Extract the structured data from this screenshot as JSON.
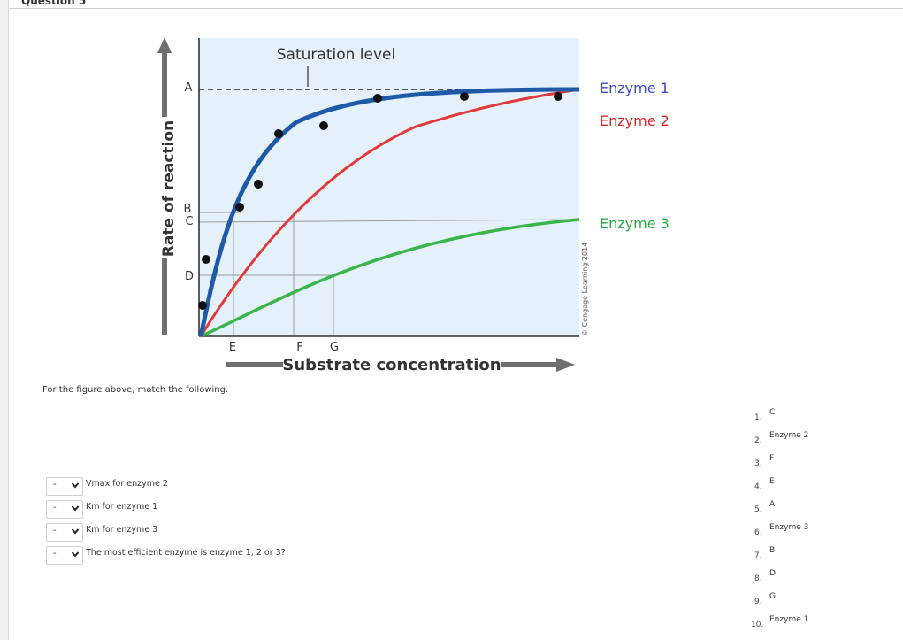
{
  "question": {
    "header": "Question 5"
  },
  "figure": {
    "curve_labels": [
      {
        "text": "Enzyme 1",
        "color": "#3d4fbf"
      },
      {
        "text": "Enzyme 2",
        "color": "#d42a2a"
      },
      {
        "text": "Enzyme 3",
        "color": "#2aa845"
      }
    ],
    "y_axis_label": "Rate of reaction",
    "x_axis_label": "Substrate concentration",
    "saturation_label": "Saturation level",
    "y_markers": [
      "A",
      "B",
      "C",
      "D"
    ],
    "x_markers": [
      "E",
      "F",
      "G"
    ],
    "credit": "© Cengage Learning 2014",
    "colors": {
      "enzyme1": "#1f5aa8",
      "enzyme2": "#e03a3a",
      "enzyme3": "#3ab54a",
      "plot_bg": "#e4f0fa"
    }
  },
  "instructions": "For the figure above, match the following.",
  "matching": {
    "items": [
      {
        "selected": "-",
        "label": "Vmax for enzyme 2"
      },
      {
        "selected": "-",
        "label": "Km for enzyme 1"
      },
      {
        "selected": "-",
        "label": "Km for enzyme 3"
      },
      {
        "selected": "-",
        "label": "The most efficient enzyme is enzyme 1, 2 or 3?"
      }
    ],
    "answers": [
      {
        "num": "1.",
        "text": "C"
      },
      {
        "num": "2.",
        "text": "Enzyme 2"
      },
      {
        "num": "3.",
        "text": "F"
      },
      {
        "num": "4.",
        "text": "E"
      },
      {
        "num": "5.",
        "text": "A"
      },
      {
        "num": "6.",
        "text": "Enzyme 3"
      },
      {
        "num": "7.",
        "text": "B"
      },
      {
        "num": "8.",
        "text": "D"
      },
      {
        "num": "9.",
        "text": "G"
      },
      {
        "num": "10.",
        "text": "Enzyme 1"
      }
    ]
  }
}
